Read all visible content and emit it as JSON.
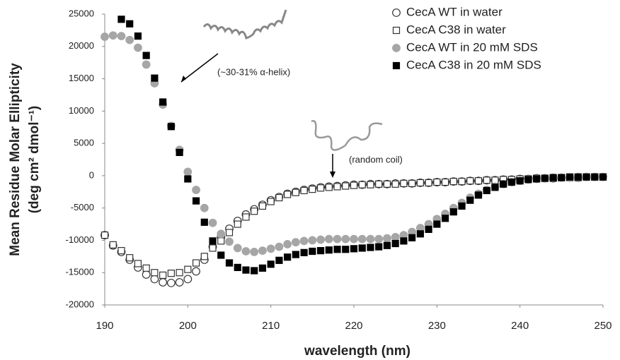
{
  "chart_data": {
    "type": "scatter",
    "ylabel": [
      "Mean Residue Molar Ellipticity",
      "(deg cm² dmol⁻¹)"
    ],
    "xlabel": "wavelength (nm)",
    "x": [
      190,
      191,
      192,
      193,
      194,
      195,
      196,
      197,
      198,
      199,
      200,
      201,
      202,
      203,
      204,
      205,
      206,
      207,
      208,
      209,
      210,
      211,
      212,
      213,
      214,
      215,
      216,
      217,
      218,
      219,
      220,
      221,
      222,
      223,
      224,
      225,
      226,
      227,
      228,
      229,
      230,
      231,
      232,
      233,
      234,
      235,
      236,
      237,
      238,
      239,
      240,
      241,
      242,
      243,
      244,
      245,
      246,
      247,
      248,
      249,
      250
    ],
    "series": [
      {
        "name": "CecA WT in water",
        "marker": "circle",
        "color": "#333333",
        "filled": false,
        "values": [
          -9200,
          -10800,
          -11800,
          -13000,
          -14200,
          -15300,
          -16000,
          -16500,
          -16600,
          -16500,
          -16000,
          -14800,
          -13000,
          -11000,
          -9500,
          -8200,
          -7000,
          -6000,
          -5200,
          -4500,
          -3800,
          -3300,
          -2800,
          -2500,
          -2200,
          -2000,
          -1800,
          -1700,
          -1600,
          -1500,
          -1400,
          -1400,
          -1300,
          -1300,
          -1300,
          -1200,
          -1200,
          -1200,
          -1100,
          -1100,
          -1000,
          -1000,
          -900,
          -900,
          -800,
          -800,
          -700,
          -700,
          -600,
          -600,
          -500,
          -500,
          -400,
          -400,
          -400,
          -300,
          -300,
          -300,
          -200,
          -200,
          -200
        ]
      },
      {
        "name": "CecA C38 in water",
        "marker": "square",
        "color": "#333333",
        "filled": false,
        "values": [
          -9200,
          -10700,
          -11600,
          -12700,
          -13600,
          -14300,
          -15000,
          -15400,
          -15100,
          -15000,
          -14500,
          -13500,
          -12500,
          -11200,
          -10100,
          -8800,
          -7500,
          -6400,
          -5500,
          -4700,
          -4000,
          -3400,
          -2900,
          -2600,
          -2300,
          -2100,
          -1900,
          -1800,
          -1700,
          -1600,
          -1500,
          -1400,
          -1400,
          -1300,
          -1300,
          -1300,
          -1200,
          -1200,
          -1100,
          -1100,
          -1000,
          -1000,
          -900,
          -900,
          -800,
          -800,
          -700,
          -700,
          -600,
          -600,
          -500,
          -500,
          -400,
          -400,
          -400,
          -300,
          -300,
          -300,
          -200,
          -200,
          -200
        ]
      },
      {
        "name": "CecA WT in 20 mM SDS",
        "marker": "circle",
        "color": "#a6a6a6",
        "filled": true,
        "values": [
          21500,
          21700,
          21600,
          21000,
          19800,
          17200,
          14300,
          11000,
          7700,
          4000,
          600,
          -2200,
          -5000,
          -7300,
          -9000,
          -10200,
          -11200,
          -11700,
          -11800,
          -11600,
          -11300,
          -11000,
          -10600,
          -10300,
          -10100,
          -10000,
          -9900,
          -9800,
          -9800,
          -9800,
          -9800,
          -9800,
          -9800,
          -9800,
          -9700,
          -9500,
          -9200,
          -8700,
          -8100,
          -7500,
          -6700,
          -5900,
          -5000,
          -4200,
          -3400,
          -2800,
          -2200,
          -1700,
          -1300,
          -1000,
          -800,
          -600,
          -500,
          -400,
          -300,
          -300,
          -300,
          -200,
          -200,
          -200,
          -200
        ]
      },
      {
        "name": "CecA C38 in 20 mM SDS",
        "marker": "square",
        "color": "#000000",
        "filled": true,
        "values": [
          null,
          null,
          24200,
          23500,
          21600,
          18600,
          15100,
          11400,
          7600,
          3600,
          -500,
          -3900,
          -7200,
          -10100,
          -12300,
          -13500,
          -14200,
          -14600,
          -14700,
          -14300,
          -13700,
          -13100,
          -12600,
          -12200,
          -11900,
          -11700,
          -11600,
          -11500,
          -11400,
          -11400,
          -11300,
          -11200,
          -11100,
          -11000,
          -10800,
          -10500,
          -10100,
          -9600,
          -9000,
          -8300,
          -7500,
          -6600,
          -5600,
          -4700,
          -3800,
          -3000,
          -2300,
          -1800,
          -1300,
          -1000,
          -800,
          -600,
          -500,
          -400,
          -300,
          -300,
          -200,
          -200,
          -200,
          -200,
          -200
        ]
      }
    ],
    "xlim": [
      190,
      250
    ],
    "xticks": [
      190,
      200,
      210,
      220,
      230,
      240,
      250
    ],
    "ylim": [
      -20000,
      25000
    ],
    "yticks": [
      -20000,
      -15000,
      -10000,
      -5000,
      0,
      5000,
      10000,
      15000,
      20000,
      25000
    ],
    "grid": false,
    "legend": "top-right",
    "annotations": [
      {
        "text": "(~30-31% α-helix)"
      },
      {
        "text": "(random coil)"
      }
    ]
  }
}
